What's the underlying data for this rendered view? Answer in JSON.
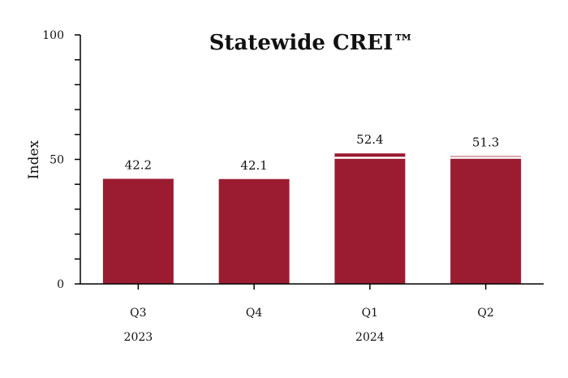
{
  "chart_data": {
    "type": "bar",
    "title": "Statewide CREI™",
    "ylabel": "Index",
    "xlabel": "",
    "ylim": [
      0,
      100
    ],
    "yticks": [
      0,
      50,
      100
    ],
    "categories": [
      "Q3",
      "Q4",
      "Q1",
      "Q2"
    ],
    "year_labels": [
      {
        "label": "2023",
        "under": "Q3"
      },
      {
        "label": "2024",
        "under": "Q1"
      }
    ],
    "values": [
      42.2,
      42.1,
      52.4,
      51.3
    ],
    "data_labels": [
      "42.2",
      "42.1",
      "52.4",
      "51.3"
    ],
    "reference_line": 50,
    "colors": {
      "bar": "#9b1c31",
      "reference_line": "#ffffff",
      "axis": "#000000"
    }
  }
}
